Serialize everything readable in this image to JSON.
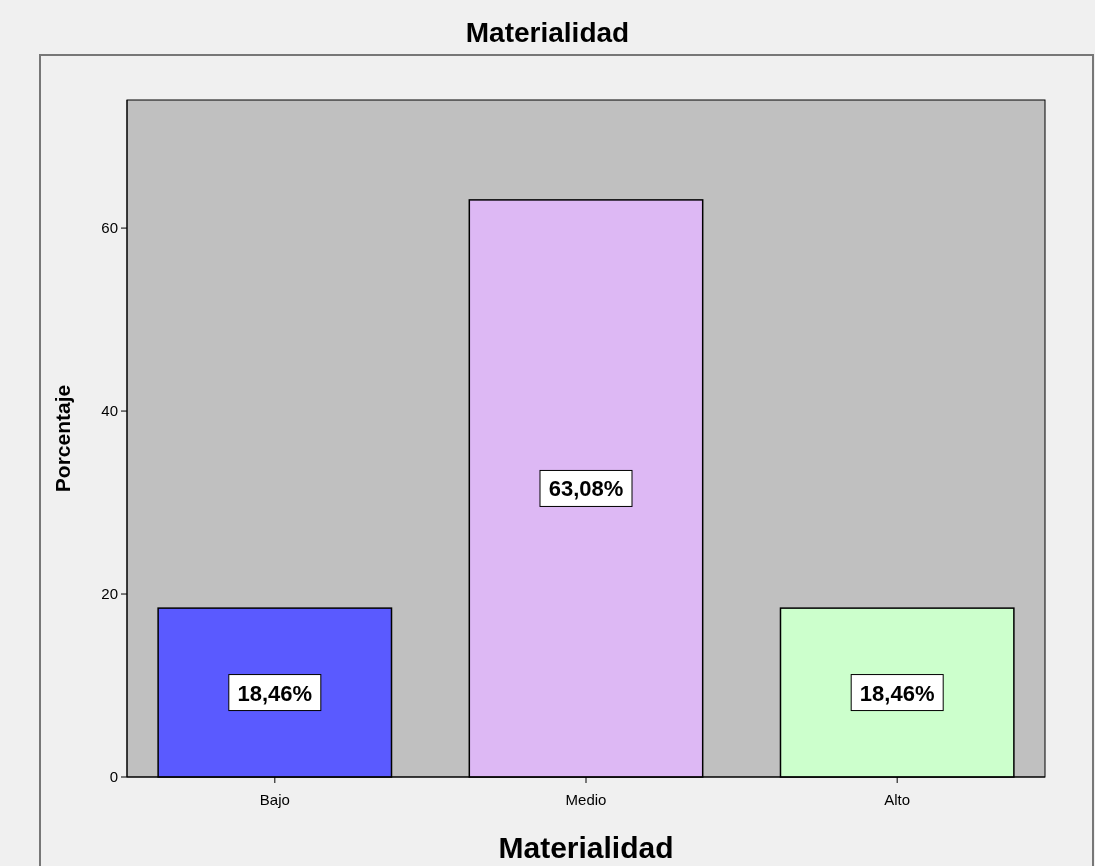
{
  "chart_data": {
    "type": "bar",
    "title": "Materialidad",
    "xlabel": "Materialidad",
    "ylabel": "Porcentaje",
    "categories": [
      "Bajo",
      "Medio",
      "Alto"
    ],
    "values": [
      18.46,
      63.08,
      18.46
    ],
    "colors": [
      "#5a5aff",
      "#ddb8f4",
      "#ccffcc"
    ],
    "value_labels": [
      "18,46%",
      "63,08%",
      "18,46%"
    ],
    "ylim": [
      0,
      74
    ],
    "yticks": [
      0,
      20,
      40,
      60
    ],
    "grid": false
  }
}
